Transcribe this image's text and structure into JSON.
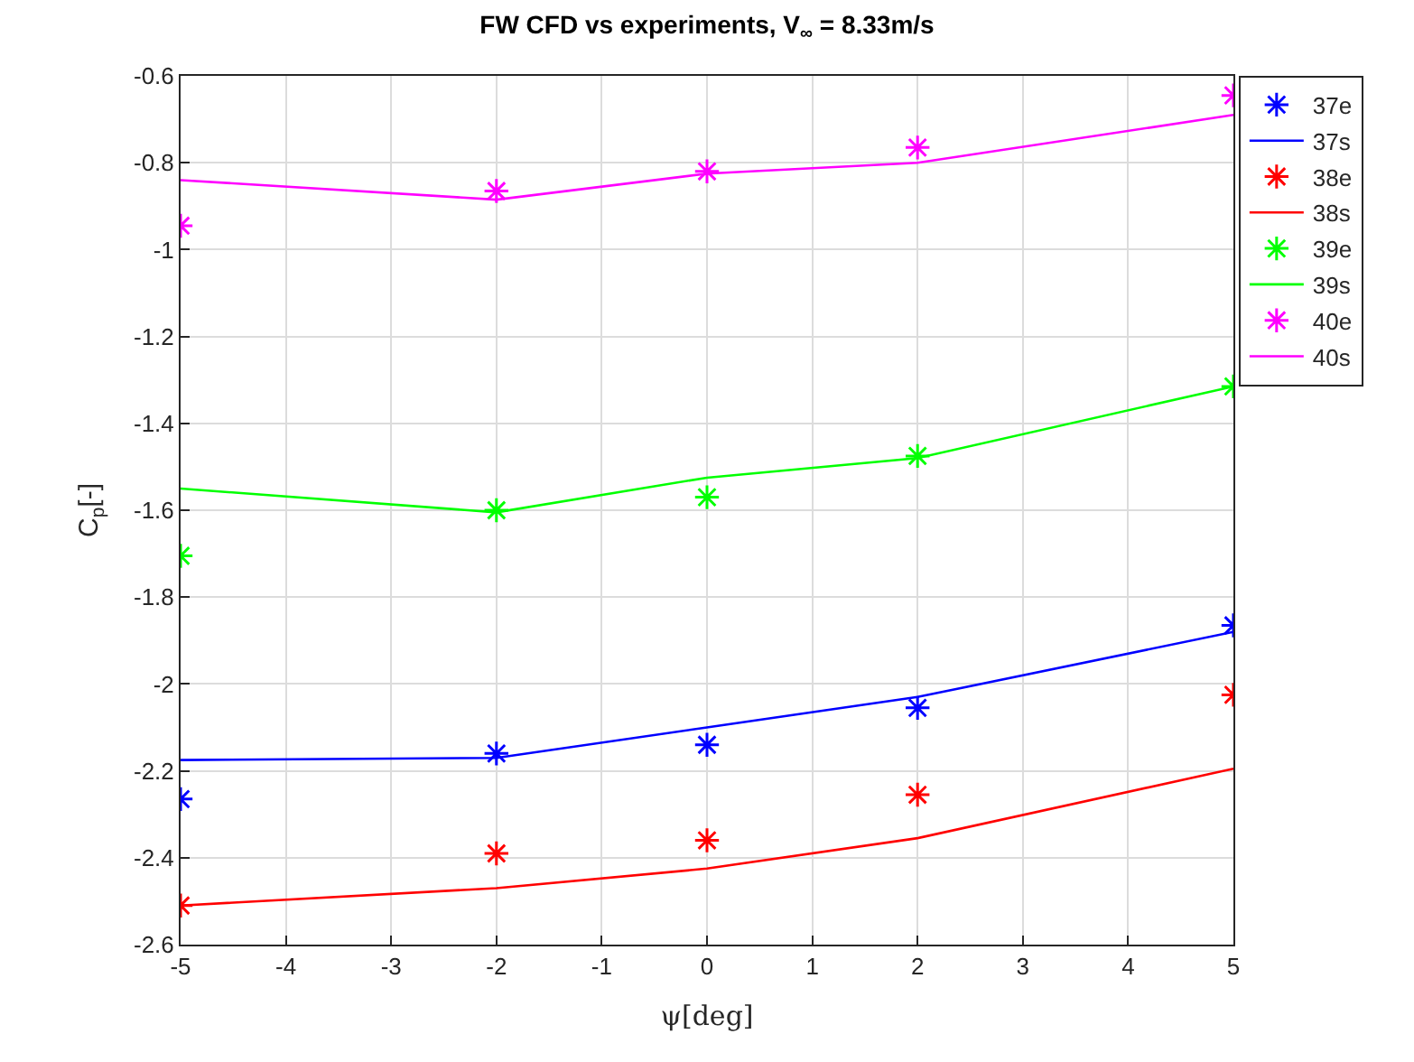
{
  "chart_data": {
    "type": "line",
    "title": "FW CFD vs experiments, V$_{∞}$ = 8.33m/s",
    "xlabel": "ψ[deg]",
    "ylabel": "C$_{p}$[-]",
    "x": [
      -5,
      -2,
      0,
      2,
      5
    ],
    "xlim": [
      -5,
      5
    ],
    "xticks": [
      -5,
      -4,
      -3,
      -2,
      -1,
      0,
      1,
      2,
      3,
      4,
      5
    ],
    "ylim": [
      -2.6,
      -0.6
    ],
    "yticks": [
      -2.6,
      -2.4,
      -2.2,
      -2,
      -1.8,
      -1.6,
      -1.4,
      -1.2,
      -1,
      -0.8,
      -0.6
    ],
    "grid": true,
    "legend": "top right",
    "series": [
      {
        "name": "37e",
        "type": "scatter",
        "marker": "cross",
        "color": "#0000ff",
        "values": [
          -2.265,
          -2.16,
          -2.14,
          -2.055,
          -1.865
        ]
      },
      {
        "name": "37s",
        "marker": "none",
        "color": "#0000ff",
        "values": [
          -2.175,
          -2.17,
          -2.1,
          -2.03,
          -1.88
        ]
      },
      {
        "name": "38e",
        "type": "scatter",
        "marker": "cross",
        "color": "#ff0000",
        "values": [
          -2.51,
          -2.39,
          -2.36,
          -2.255,
          -2.025
        ]
      },
      {
        "name": "38s",
        "marker": "none",
        "color": "#ff0000",
        "values": [
          -2.51,
          -2.47,
          -2.425,
          -2.355,
          -2.195
        ]
      },
      {
        "name": "39e",
        "type": "scatter",
        "marker": "cross",
        "color": "#00ff00",
        "values": [
          -1.705,
          -1.6,
          -1.57,
          -1.475,
          -1.315
        ]
      },
      {
        "name": "39s",
        "marker": "none",
        "color": "#00ff00",
        "values": [
          -1.55,
          -1.605,
          -1.525,
          -1.48,
          -1.315
        ]
      },
      {
        "name": "40e",
        "type": "scatter",
        "marker": "cross",
        "color": "#ff00ff",
        "values": [
          -0.945,
          -0.865,
          -0.82,
          -0.765,
          -0.645
        ]
      },
      {
        "name": "40s",
        "marker": "none",
        "color": "#ff00ff",
        "values": [
          -0.84,
          -0.885,
          -0.825,
          -0.8,
          -0.69
        ]
      }
    ]
  }
}
